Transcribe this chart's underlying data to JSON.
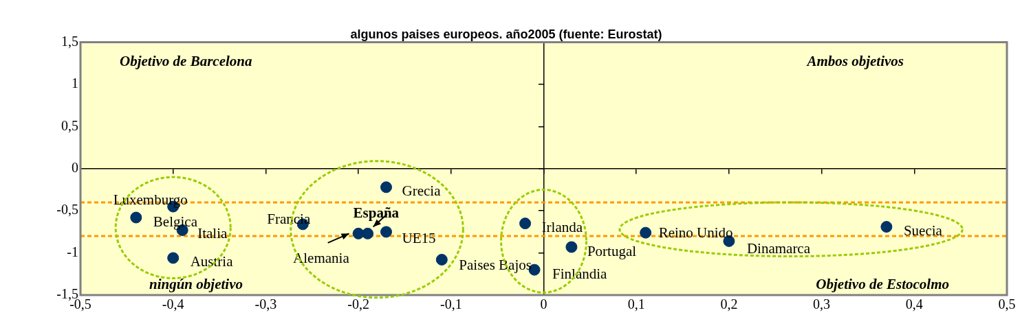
{
  "chart_data": {
    "type": "scatter",
    "title": "algunos paises europeos. año2005 (fuente: Eurostat)",
    "x": [
      -0.4,
      -0.44,
      -0.39,
      -0.4,
      -0.26,
      -0.17,
      -0.2,
      -0.19,
      -0.17,
      -0.11,
      -0.02,
      -0.01,
      0.03,
      0.11,
      0.2,
      0.37
    ],
    "series": [
      {
        "color": "#003366",
        "values": [
          -0.45,
          -0.58,
          -0.73,
          -1.06,
          -0.66,
          -0.22,
          -0.77,
          -0.77,
          -0.75,
          -1.08,
          -0.65,
          -1.2,
          -0.93,
          -0.76,
          -0.86,
          -0.69
        ]
      }
    ],
    "marker": "circle",
    "legend": false,
    "xlim": [
      -0.5,
      0.5
    ],
    "ylim": [
      -1.5,
      1.5
    ],
    "xticks": [
      {
        "value": -0.5,
        "label": "-0,5"
      },
      {
        "value": -0.4,
        "label": "-0,4"
      },
      {
        "value": -0.3,
        "label": "-0,3"
      },
      {
        "value": -0.2,
        "label": "-0,2"
      },
      {
        "value": -0.1,
        "label": "-0,1"
      },
      0,
      {
        "value": 0.1,
        "label": "0,1"
      },
      {
        "value": 0.2,
        "label": "0,2"
      },
      {
        "value": 0.3,
        "label": "0,3"
      },
      {
        "value": 0.4,
        "label": "0,4"
      },
      {
        "value": 0.5,
        "label": "0,5"
      }
    ],
    "yticks": [
      {
        "value": -1.5,
        "label": "-1,5"
      },
      -1,
      {
        "value": -0.5,
        "label": "-0,5"
      },
      0,
      {
        "value": 0.5,
        "label": "0,5"
      },
      1,
      {
        "value": 1.5,
        "label": "1,5"
      }
    ],
    "ref_lines": [
      {
        "axis": "y",
        "value": -0.4,
        "color": "#ff9900",
        "line_style": "dashed"
      },
      {
        "axis": "y",
        "value": -0.8,
        "color": "#ff9900",
        "line_style": "dashed"
      }
    ],
    "annotations": [
      {
        "text": "Luxemburgo",
        "x": -0.4,
        "y": -0.45
      },
      {
        "text": "Belgica",
        "x": -0.44,
        "y": -0.58
      },
      {
        "text": "Italia",
        "x": -0.39,
        "y": -0.73
      },
      {
        "text": "Austria",
        "x": -0.4,
        "y": -1.06
      },
      {
        "text": "Francia",
        "x": -0.26,
        "y": -0.66
      },
      {
        "text": "Grecia",
        "x": -0.17,
        "y": -0.22
      },
      {
        "text": "Alemania",
        "x": -0.2,
        "y": -0.77
      },
      {
        "text": "España",
        "x": -0.19,
        "y": -0.77
      },
      {
        "text": "UE15",
        "x": -0.17,
        "y": -0.75
      },
      {
        "text": "Paises Bajos",
        "x": -0.11,
        "y": -1.08
      },
      {
        "text": "Irlanda",
        "x": -0.02,
        "y": -0.65
      },
      {
        "text": "Finlandia",
        "x": -0.01,
        "y": -1.2
      },
      {
        "text": "Portugal",
        "x": 0.03,
        "y": -0.93
      },
      {
        "text": "Reino Unido",
        "x": 0.11,
        "y": -0.76
      },
      {
        "text": "Dinamarca",
        "x": 0.2,
        "y": -0.86
      },
      {
        "text": "Suecia",
        "x": 0.37,
        "y": -0.69
      },
      "Objetivo de Barcelona",
      "Ambos objetivos",
      "ningún objetivo",
      "Objetivo de Estocolmo"
    ]
  }
}
